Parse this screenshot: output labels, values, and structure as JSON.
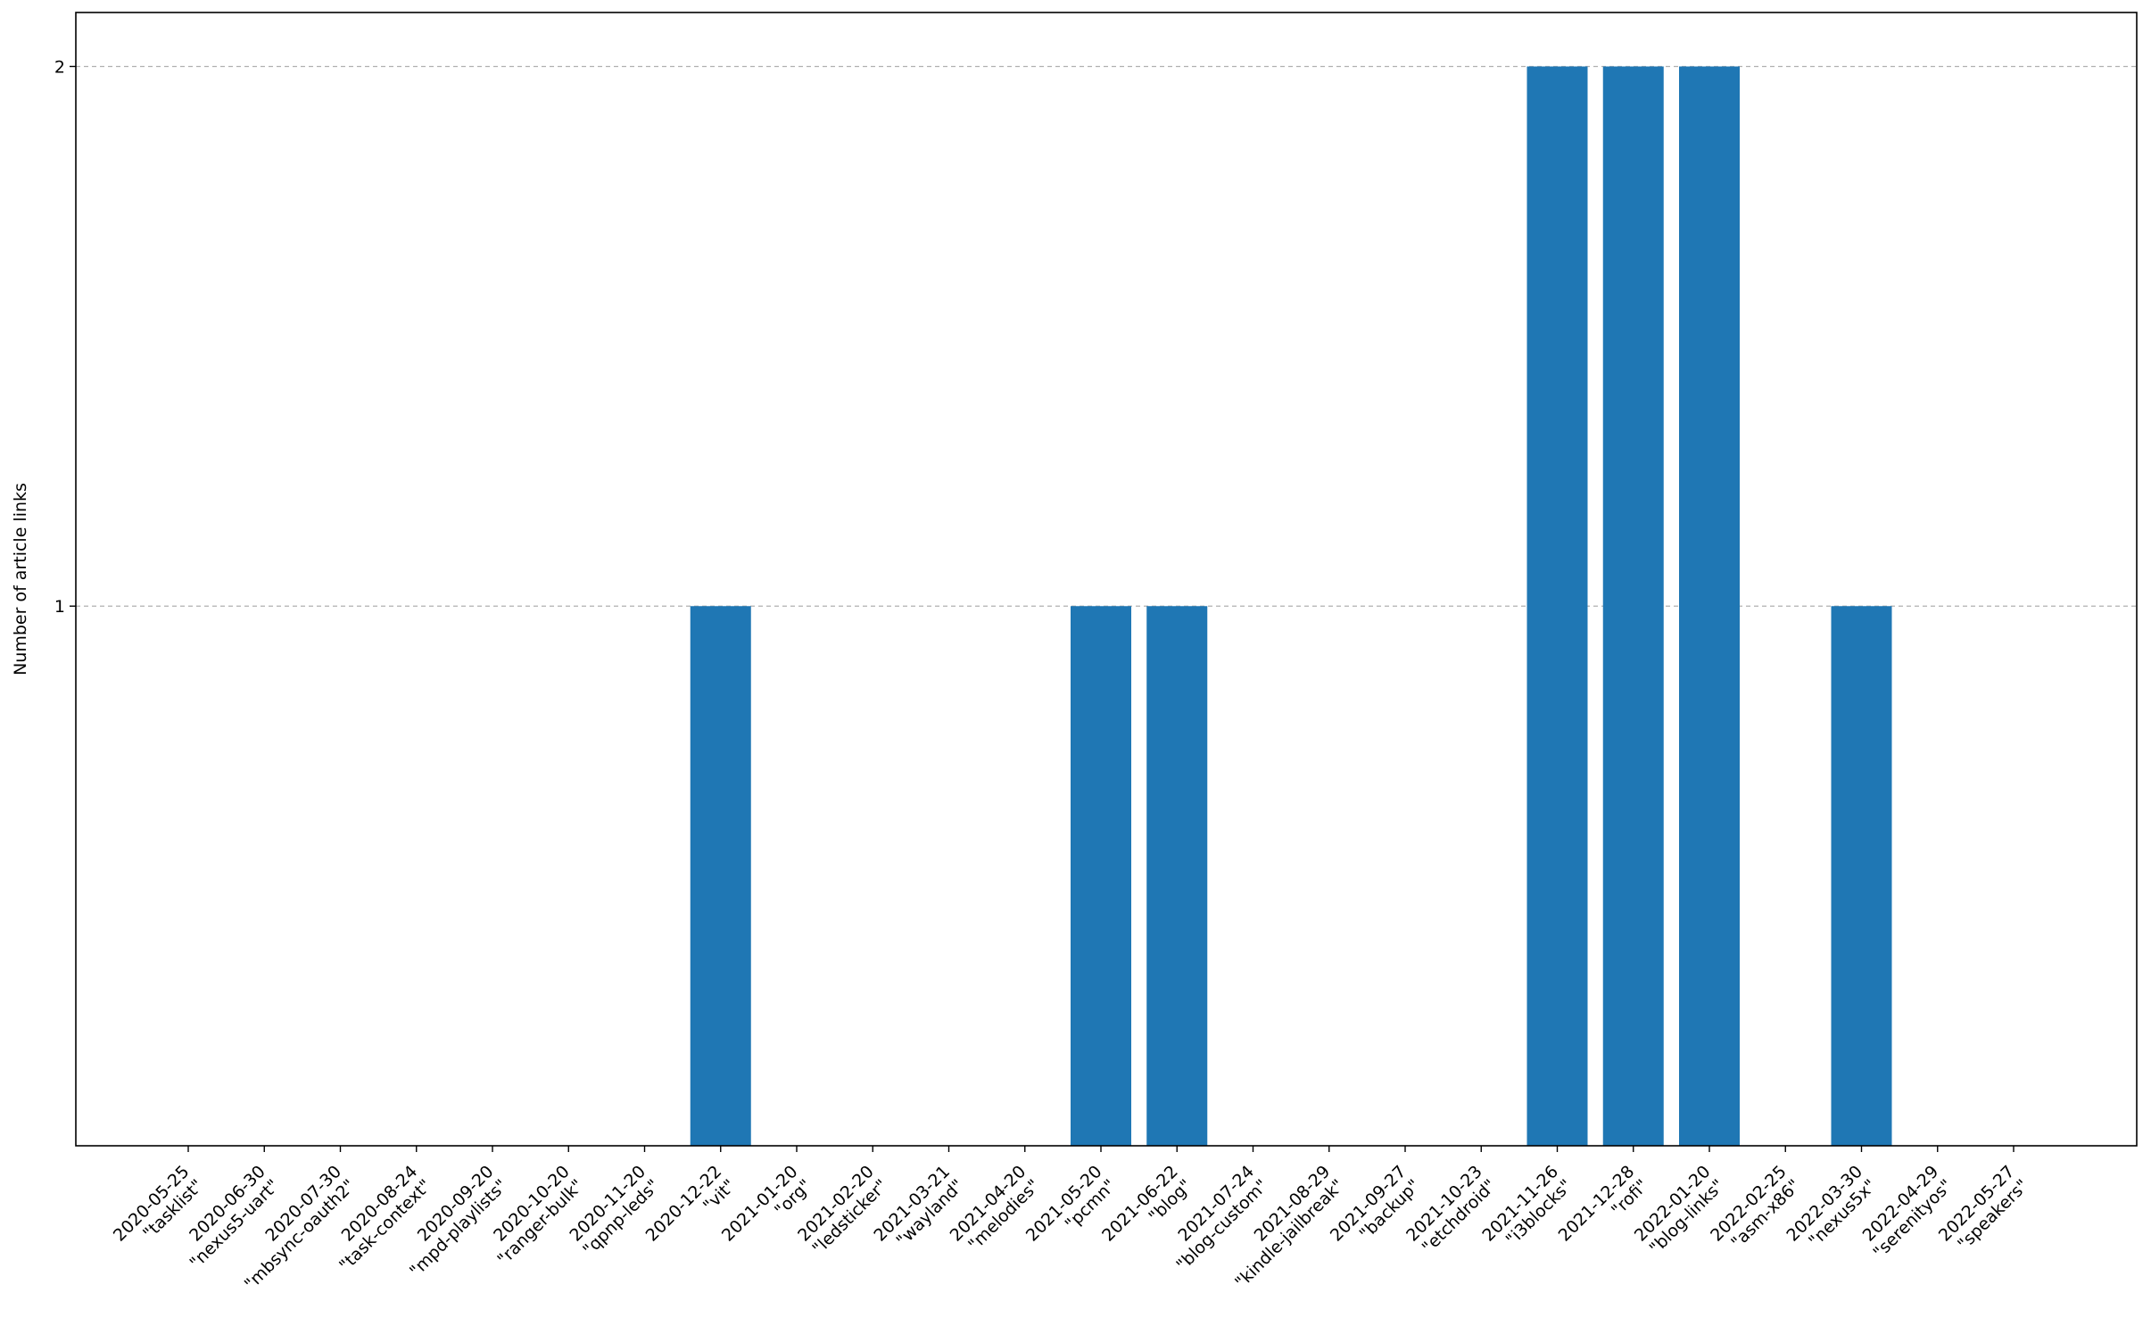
{
  "chart_data": {
    "type": "bar",
    "title": "",
    "xlabel": "",
    "ylabel": "Number of article links",
    "ylim": [
      0,
      2.1
    ],
    "yticks": [
      1,
      2
    ],
    "grid": "horizontal dashed",
    "bar_color": "#1f77b4",
    "categories": [
      "2020-05-25\n\"tasklist\"",
      "2020-06-30\n\"nexus5-uart\"",
      "2020-07-30\n\"mbsync-oauth2\"",
      "2020-08-24\n\"task-context\"",
      "2020-09-20\n\"mpd-playlists\"",
      "2020-10-20\n\"ranger-bulk\"",
      "2020-11-20\n\"qpnp-leds\"",
      "2020-12-22\n\"vit\"",
      "2021-01-20\n\"org\"",
      "2021-02-20\n\"ledsticker\"",
      "2021-03-21\n\"wayland\"",
      "2021-04-20\n\"melodies\"",
      "2021-05-20\n\"pcmn\"",
      "2021-06-22\n\"blog\"",
      "2021-07-24\n\"blog-custom\"",
      "2021-08-29\n\"kindle-jailbreak\"",
      "2021-09-27\n\"backup\"",
      "2021-10-23\n\"etchdroid\"",
      "2021-11-26\n\"i3blocks\"",
      "2021-12-28\n\"rofi\"",
      "2022-01-20\n\"blog-links\"",
      "2022-02-25\n\"asm-x86\"",
      "2022-03-30\n\"nexus5x\"",
      "2022-04-29\n\"serenityos\"",
      "2022-05-27\n\"speakers\""
    ],
    "values": [
      0,
      0,
      0,
      0,
      0,
      0,
      0,
      1,
      0,
      0,
      0,
      0,
      1,
      1,
      0,
      0,
      0,
      0,
      2,
      2,
      2,
      0,
      1,
      0,
      0
    ]
  }
}
